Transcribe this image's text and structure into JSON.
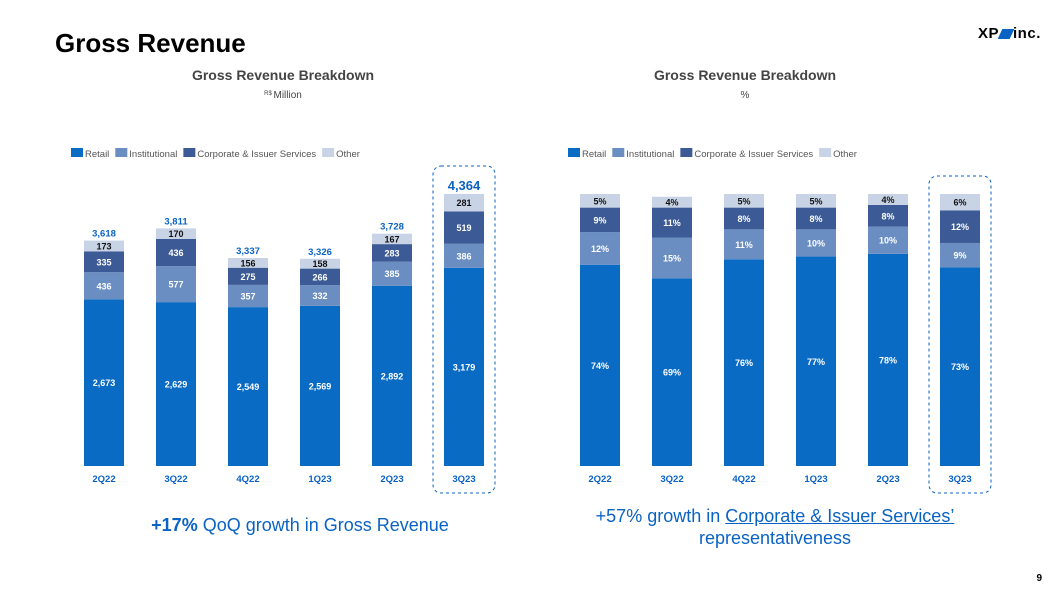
{
  "page": {
    "title": "Gross Revenue",
    "logo_text_left": "XP",
    "logo_text_right": "inc.",
    "page_number": "9",
    "brand_color": "#0a63c4"
  },
  "left_caption": {
    "highlight": "+17%",
    "text": " QoQ growth in Gross Revenue"
  },
  "right_caption": {
    "prefix": "+57% growth in ",
    "underlined": "Corporate & Issuer Services’",
    "suffix": "representativeness"
  },
  "legend_items": [
    {
      "label": "Retail",
      "color": "#0a6bc4"
    },
    {
      "label": "Institutional",
      "color": "#6b8ec2"
    },
    {
      "label": "Corporate & Issuer Services",
      "color": "#3c5a95"
    },
    {
      "label": "Other",
      "color": "#c8d4e6"
    }
  ],
  "chart_data": [
    {
      "type": "bar",
      "stacked": true,
      "title": "Gross Revenue Breakdown",
      "subtitle_unit": "R$",
      "subtitle": "Million",
      "categories": [
        "2Q22",
        "3Q22",
        "4Q22",
        "1Q23",
        "2Q23",
        "3Q23"
      ],
      "series": [
        {
          "name": "Retail",
          "color": "#0a6bc4",
          "values": [
            2673,
            2629,
            2549,
            2569,
            2892,
            3179
          ],
          "labels": [
            "2,673",
            "2,629",
            "2,549",
            "2,569",
            "2,892",
            "3,179"
          ]
        },
        {
          "name": "Institutional",
          "color": "#6b8ec2",
          "values": [
            436,
            577,
            357,
            332,
            385,
            386
          ],
          "labels": [
            "436",
            "577",
            "357",
            "332",
            "385",
            "386"
          ]
        },
        {
          "name": "Corporate & Issuer Services",
          "color": "#3c5a95",
          "values": [
            335,
            436,
            275,
            266,
            283,
            519
          ],
          "labels": [
            "335",
            "436",
            "275",
            "266",
            "283",
            "519"
          ]
        },
        {
          "name": "Other",
          "color": "#c8d4e6",
          "values": [
            173,
            170,
            156,
            158,
            167,
            281
          ],
          "labels": [
            "173",
            "170",
            "156",
            "158",
            "167",
            "281"
          ]
        }
      ],
      "totals": [
        3618,
        3811,
        3337,
        3326,
        3728,
        4364
      ],
      "total_labels": [
        "3,618",
        "3,811",
        "3,337",
        "3,326",
        "3,728",
        "4,364"
      ],
      "ylim": [
        0,
        4500
      ],
      "highlight_category": "3Q23",
      "legend_position": "top-left",
      "grid": false
    },
    {
      "type": "bar",
      "stacked": true,
      "title": "Gross Revenue Breakdown",
      "subtitle": "%",
      "categories": [
        "2Q22",
        "3Q22",
        "4Q22",
        "1Q23",
        "2Q23",
        "3Q23"
      ],
      "series": [
        {
          "name": "Retail",
          "color": "#0a6bc4",
          "values": [
            74,
            69,
            76,
            77,
            78,
            73
          ],
          "labels": [
            "74%",
            "69%",
            "76%",
            "77%",
            "78%",
            "73%"
          ]
        },
        {
          "name": "Institutional",
          "color": "#6b8ec2",
          "values": [
            12,
            15,
            11,
            10,
            10,
            9
          ],
          "labels": [
            "12%",
            "15%",
            "11%",
            "10%",
            "10%",
            "9%"
          ]
        },
        {
          "name": "Corporate & Issuer Services",
          "color": "#3c5a95",
          "values": [
            9,
            11,
            8,
            8,
            8,
            12
          ],
          "labels": [
            "9%",
            "11%",
            "8%",
            "8%",
            "8%",
            "12%"
          ]
        },
        {
          "name": "Other",
          "color": "#c8d4e6",
          "values": [
            5,
            4,
            5,
            5,
            4,
            6
          ],
          "labels": [
            "5%",
            "4%",
            "5%",
            "5%",
            "4%",
            "6%"
          ]
        }
      ],
      "ylim": [
        0,
        100
      ],
      "highlight_category": "3Q23",
      "legend_position": "top-left",
      "grid": false
    }
  ]
}
